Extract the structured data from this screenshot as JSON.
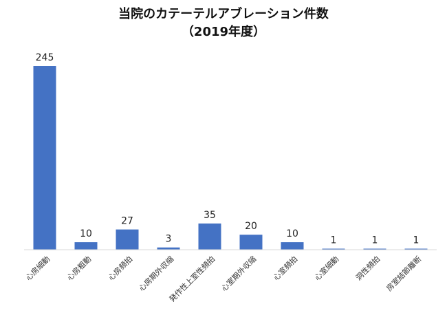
{
  "chart_data": {
    "type": "bar",
    "title": "当院のカテーテルアブレーション件数",
    "subtitle": "（2019年度）",
    "categories": [
      "心房細動",
      "心房粗動",
      "心房頻拍",
      "心房期外収縮",
      "発作性上室性頻拍",
      "心室期外収縮",
      "心室頻拍",
      "心室細動",
      "洞性頻拍",
      "房室結節離断"
    ],
    "values": [
      245,
      10,
      27,
      3,
      35,
      20,
      10,
      1,
      1,
      1
    ],
    "value_labels": [
      "245",
      "10",
      "27",
      "3",
      "35",
      "20",
      "10",
      "1",
      "1",
      "1"
    ],
    "ylim": [
      0,
      250
    ],
    "grid": false,
    "legend": "none",
    "bar_color": "#4472C4"
  }
}
